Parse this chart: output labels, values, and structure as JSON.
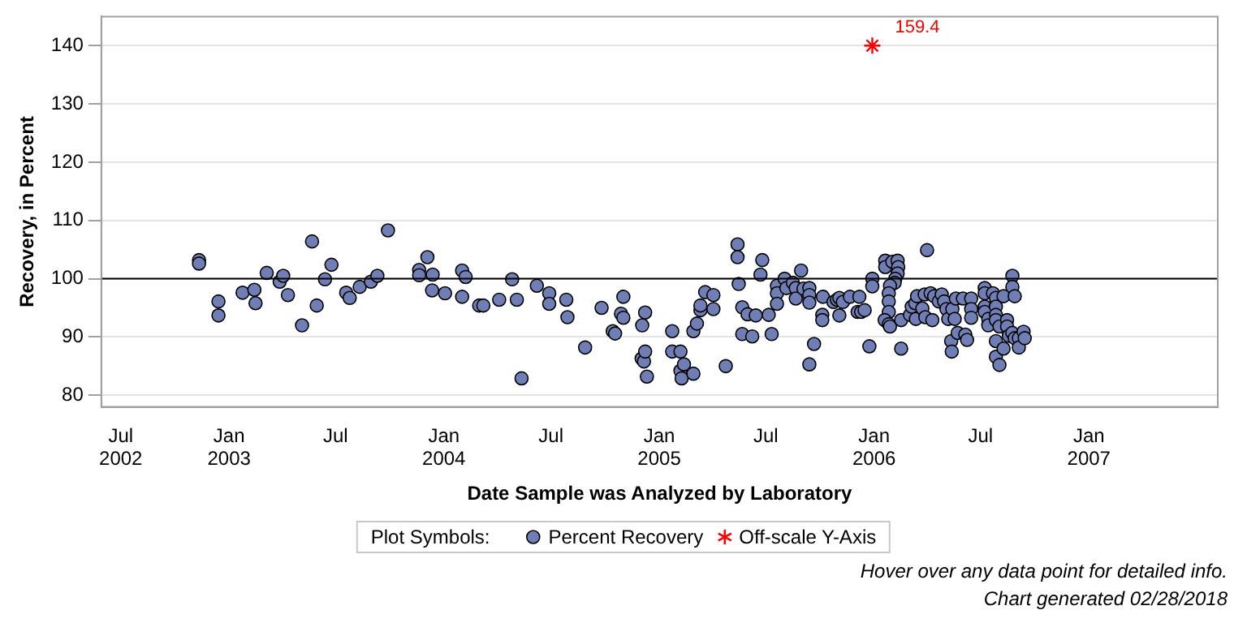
{
  "chart_data": {
    "type": "scatter",
    "xlabel": "Date Sample was Analyzed by Laboratory",
    "ylabel": "Recovery, in Percent",
    "legend_title": "Plot Symbols:",
    "legend": "bottom",
    "grid": "y",
    "xlim": [
      "2002-05-29",
      "2007-08-08"
    ],
    "xticks": [
      {
        "value": "2002-07-01",
        "label": "Jul 2002"
      },
      {
        "value": "2003-01-01",
        "label": "Jan 2003"
      },
      {
        "value": "2003-07-01",
        "label": "Jul"
      },
      {
        "value": "2004-01-01",
        "label": "Jan 2004"
      },
      {
        "value": "2004-07-01",
        "label": "Jul"
      },
      {
        "value": "2005-01-01",
        "label": "Jan 2005"
      },
      {
        "value": "2005-07-01",
        "label": "Jul"
      },
      {
        "value": "2006-01-01",
        "label": "Jan 2006"
      },
      {
        "value": "2006-07-01",
        "label": "Jul"
      },
      {
        "value": "2007-01-01",
        "label": "Jan 2007"
      }
    ],
    "ylim": [
      78,
      145
    ],
    "yticks": [
      80,
      90,
      100,
      110,
      120,
      130,
      140
    ],
    "ref_lines": [
      {
        "axis": "y",
        "value": 100,
        "color": "#000000"
      }
    ],
    "annotations": [
      {
        "text": "159.4",
        "x": "2005-12-29",
        "y": 140
      },
      "Hover over any data point for detailed info.",
      "Chart generated 02/28/2018"
    ],
    "series": [
      {
        "name": "Percent Recovery",
        "color": "#6f7fb5",
        "marker": "circle",
        "x": [
          "2002-11-11",
          "2002-11-11",
          "2002-12-14",
          "2002-12-14",
          "2003-01-24",
          "2003-02-13",
          "2003-02-15",
          "2003-03-06",
          "2003-03-28",
          "2003-04-03",
          "2003-04-11",
          "2003-05-05",
          "2003-05-22",
          "2003-05-30",
          "2003-06-13",
          "2003-06-24",
          "2003-07-19",
          "2003-07-25",
          "2003-08-11",
          "2003-08-30",
          "2003-09-10",
          "2003-09-28",
          "2003-11-20",
          "2003-11-20",
          "2003-12-04",
          "2003-12-13",
          "2003-12-12",
          "2004-01-03",
          "2004-02-01",
          "2004-02-07",
          "2004-02-01",
          "2004-03-01",
          "2004-03-08",
          "2004-04-04",
          "2004-04-26",
          "2004-05-04",
          "2004-05-12",
          "2004-06-07",
          "2004-06-28",
          "2004-06-28",
          "2004-07-27",
          "2004-07-29",
          "2004-08-28",
          "2004-09-25",
          "2004-10-14",
          "2004-10-18",
          "2004-10-28",
          "2004-11-01",
          "2004-11-01",
          "2004-12-03",
          "2004-12-08",
          "2004-12-02",
          "2004-12-06",
          "2004-12-08",
          "2004-12-11",
          "2005-01-23",
          "2005-01-23",
          "2005-02-06",
          "2005-02-06",
          "2005-02-08",
          "2005-02-12",
          "2005-02-28",
          "2005-02-28",
          "2005-03-06",
          "2005-03-12",
          "2005-03-12",
          "2005-03-20",
          "2005-04-03",
          "2005-04-03",
          "2005-04-24",
          "2005-05-14",
          "2005-05-14",
          "2005-05-16",
          "2005-05-22",
          "2005-05-22",
          "2005-05-31",
          "2005-06-08",
          "2005-06-14",
          "2005-06-25",
          "2005-06-22",
          "2005-07-06",
          "2005-07-11",
          "2005-07-20",
          "2005-07-20",
          "2005-07-20",
          "2005-08-02",
          "2005-08-05",
          "2005-08-16",
          "2005-08-21",
          "2005-08-21",
          "2005-08-30",
          "2005-09-03",
          "2005-09-13",
          "2005-09-13",
          "2005-09-13",
          "2005-09-21",
          "2005-09-13",
          "2005-10-05",
          "2005-10-05",
          "2005-10-06",
          "2005-10-24",
          "2005-10-30",
          "2005-11-03",
          "2005-11-09",
          "2005-11-03",
          "2005-11-21",
          "2005-12-04",
          "2005-12-07",
          "2005-12-10",
          "2005-12-16",
          "2005-12-24",
          "2005-12-29",
          "2005-12-29",
          "2006-01-20",
          "2006-01-20",
          "2006-02-01",
          "2006-02-10",
          "2006-02-11",
          "2006-02-10",
          "2006-02-06",
          "2006-02-05",
          "2006-01-28",
          "2006-01-26",
          "2006-01-26",
          "2006-01-26",
          "2006-01-19",
          "2006-01-26",
          "2006-01-28",
          "2006-02-16",
          "2006-02-16",
          "2006-03-03",
          "2006-03-06",
          "2006-03-12",
          "2006-03-15",
          "2006-03-13",
          "2006-03-24",
          "2006-03-29",
          "2006-03-28",
          "2006-04-01",
          "2006-04-07",
          "2006-04-10",
          "2006-04-13",
          "2006-04-21",
          "2006-04-26",
          "2006-04-30",
          "2006-05-04",
          "2006-05-07",
          "2006-05-14",
          "2006-05-18",
          "2006-05-20",
          "2006-05-12",
          "2006-05-13",
          "2006-05-23",
          "2006-06-01",
          "2006-06-05",
          "2006-06-08",
          "2006-06-15",
          "2006-06-15",
          "2006-06-15",
          "2006-07-08",
          "2006-07-08",
          "2006-07-08",
          "2006-07-08",
          "2006-07-14",
          "2006-07-14",
          "2006-07-22",
          "2006-07-27",
          "2006-07-27",
          "2006-07-27",
          "2006-07-27",
          "2006-08-02",
          "2006-07-27",
          "2006-07-27",
          "2006-08-02",
          "2006-08-09",
          "2006-08-15",
          "2006-08-15",
          "2006-08-18",
          "2006-08-09",
          "2006-08-24",
          "2006-08-24",
          "2006-08-28",
          "2006-08-24",
          "2006-08-28",
          "2006-09-04",
          "2006-09-04",
          "2006-09-12",
          "2006-09-14"
        ],
        "values": [
          103.2,
          102.6,
          96.1,
          93.7,
          97.6,
          98.1,
          95.8,
          101.0,
          99.5,
          100.5,
          97.2,
          92.0,
          106.4,
          95.4,
          99.9,
          102.4,
          97.6,
          96.7,
          98.6,
          99.5,
          100.5,
          108.3,
          101.5,
          100.6,
          103.7,
          100.7,
          98.0,
          97.5,
          101.4,
          100.3,
          96.9,
          95.4,
          95.4,
          96.4,
          99.9,
          96.4,
          82.9,
          98.8,
          97.5,
          95.7,
          96.4,
          93.4,
          88.2,
          95.0,
          91.0,
          90.6,
          94.0,
          93.3,
          96.9,
          92.0,
          94.2,
          86.3,
          85.8,
          87.5,
          83.2,
          91.0,
          87.5,
          87.5,
          84.2,
          82.9,
          85.3,
          83.7,
          91.0,
          92.3,
          94.6,
          95.4,
          97.7,
          97.2,
          94.8,
          85.0,
          105.9,
          103.7,
          99.1,
          95.1,
          90.5,
          93.9,
          90.1,
          93.7,
          103.2,
          100.7,
          93.8,
          90.5,
          98.8,
          97.5,
          95.7,
          100.0,
          98.4,
          99.3,
          98.4,
          96.6,
          101.4,
          98.3,
          98.4,
          97.2,
          95.9,
          88.8,
          85.3,
          93.8,
          92.9,
          96.9,
          96.0,
          96.4,
          96.7,
          96.0,
          93.7,
          96.9,
          94.3,
          96.9,
          94.3,
          94.6,
          88.4,
          100.0,
          98.7,
          103.1,
          102.0,
          102.9,
          103.1,
          102.0,
          100.9,
          100.0,
          99.3,
          98.8,
          97.5,
          96.1,
          94.3,
          92.9,
          92.2,
          91.8,
          88.0,
          92.9,
          93.8,
          95.2,
          95.8,
          97.0,
          93.1,
          94.9,
          93.4,
          97.3,
          104.9,
          97.5,
          92.9,
          97.0,
          96.1,
          97.3,
          96.1,
          94.8,
          93.1,
          94.8,
          93.1,
          96.6,
          89.3,
          87.5,
          90.7,
          96.6,
          90.4,
          89.5,
          96.6,
          94.8,
          93.3,
          98.4,
          97.5,
          95.2,
          94.3,
          93.1,
          92.0,
          97.5,
          96.7,
          95.2,
          93.8,
          92.9,
          91.8,
          89.3,
          86.6,
          85.2,
          97.0,
          92.9,
          91.8,
          90.2,
          88.0,
          100.5,
          98.6,
          97.0,
          90.7,
          89.8,
          89.8,
          88.2,
          90.9,
          89.8
        ]
      },
      {
        "name": "Off-scale Y-Axis",
        "color": "#ff0000",
        "marker": "cross",
        "x": [
          "2005-12-29"
        ],
        "values": [
          140
        ]
      }
    ]
  }
}
